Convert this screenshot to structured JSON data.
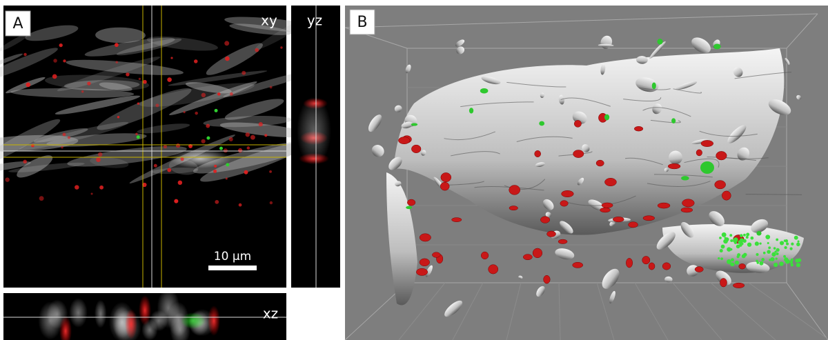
{
  "panel_a": {
    "label": "A",
    "xy": {
      "label": "xy",
      "scale_bar": "10 µm"
    },
    "yz": {
      "label": "yz"
    },
    "xz": {
      "label": "xz"
    }
  },
  "panel_b": {
    "label": "B"
  }
}
